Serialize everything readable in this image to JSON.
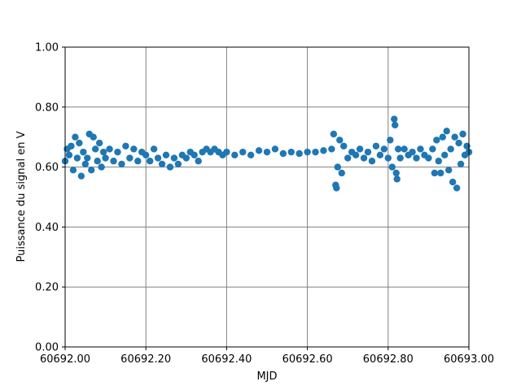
{
  "chart_data": {
    "type": "scatter",
    "xlabel": "MJD",
    "ylabel": "Puissance du signal en V",
    "color": "#1f77b4",
    "grid": true,
    "xlim": [
      60692,
      60693
    ],
    "ylim": [
      0,
      1
    ],
    "xticks": [
      {
        "value": 60692,
        "label": "60692.00"
      },
      {
        "value": 60692.2,
        "label": "60692.20"
      },
      {
        "value": 60692.4,
        "label": "60692.40"
      },
      {
        "value": 60692.6,
        "label": "60692.60"
      },
      {
        "value": 60692.8,
        "label": "60692.80"
      },
      {
        "value": 60693,
        "label": "60693.00"
      }
    ],
    "yticks": [
      {
        "value": 0,
        "label": "0.00"
      },
      {
        "value": 0.2,
        "label": "0.20"
      },
      {
        "value": 0.4,
        "label": "0.40"
      },
      {
        "value": 0.6,
        "label": "0.60"
      },
      {
        "value": 0.8,
        "label": "0.80"
      },
      {
        "value": 1,
        "label": "1.00"
      }
    ],
    "x": [
      60692.0,
      60692.005,
      60692.01,
      60692.015,
      60692.02,
      60692.025,
      60692.03,
      60692.035,
      60692.04,
      60692.045,
      60692.05,
      60692.055,
      60692.06,
      60692.065,
      60692.07,
      60692.075,
      60692.08,
      60692.085,
      60692.09,
      60692.095,
      60692.1,
      60692.11,
      60692.12,
      60692.13,
      60692.14,
      60692.15,
      60692.16,
      60692.17,
      60692.18,
      60692.19,
      60692.2,
      60692.21,
      60692.22,
      60692.23,
      60692.24,
      60692.25,
      60692.26,
      60692.27,
      60692.28,
      60692.29,
      60692.3,
      60692.31,
      60692.32,
      60692.33,
      60692.34,
      60692.35,
      60692.36,
      60692.37,
      60692.38,
      60692.39,
      60692.4,
      60692.42,
      60692.44,
      60692.46,
      60692.48,
      60692.5,
      60692.52,
      60692.54,
      60692.56,
      60692.58,
      60692.6,
      60692.62,
      60692.64,
      60692.66,
      60692.665,
      60692.67,
      60692.672,
      60692.675,
      60692.68,
      60692.685,
      60692.69,
      60692.7,
      60692.71,
      60692.72,
      60692.73,
      60692.74,
      60692.75,
      60692.76,
      60692.77,
      60692.78,
      60692.79,
      60692.8,
      60692.805,
      60692.81,
      60692.815,
      60692.817,
      60692.82,
      60692.822,
      60692.825,
      60692.83,
      60692.84,
      60692.85,
      60692.86,
      60692.87,
      60692.88,
      60692.89,
      60692.9,
      60692.91,
      60692.915,
      60692.92,
      60692.925,
      60692.93,
      60692.935,
      60692.94,
      60692.945,
      60692.95,
      60692.955,
      60692.96,
      60692.965,
      60692.97,
      60692.975,
      60692.98,
      60692.985,
      60692.99,
      60692.995,
      60693.0
    ],
    "values": [
      0.62,
      0.66,
      0.64,
      0.67,
      0.59,
      0.7,
      0.63,
      0.68,
      0.57,
      0.65,
      0.61,
      0.63,
      0.71,
      0.59,
      0.7,
      0.66,
      0.62,
      0.68,
      0.6,
      0.65,
      0.63,
      0.66,
      0.62,
      0.65,
      0.61,
      0.67,
      0.63,
      0.66,
      0.62,
      0.65,
      0.64,
      0.62,
      0.66,
      0.63,
      0.61,
      0.64,
      0.6,
      0.63,
      0.61,
      0.64,
      0.63,
      0.65,
      0.64,
      0.62,
      0.65,
      0.66,
      0.65,
      0.66,
      0.65,
      0.64,
      0.65,
      0.64,
      0.65,
      0.64,
      0.655,
      0.65,
      0.66,
      0.645,
      0.65,
      0.645,
      0.65,
      0.65,
      0.655,
      0.66,
      0.71,
      0.54,
      0.53,
      0.6,
      0.69,
      0.58,
      0.67,
      0.63,
      0.65,
      0.64,
      0.66,
      0.63,
      0.65,
      0.62,
      0.67,
      0.64,
      0.66,
      0.63,
      0.69,
      0.6,
      0.76,
      0.74,
      0.58,
      0.56,
      0.66,
      0.63,
      0.66,
      0.64,
      0.65,
      0.63,
      0.66,
      0.64,
      0.63,
      0.66,
      0.58,
      0.69,
      0.62,
      0.58,
      0.7,
      0.64,
      0.72,
      0.59,
      0.66,
      0.55,
      0.7,
      0.53,
      0.68,
      0.61,
      0.71,
      0.64,
      0.67,
      0.65
    ]
  }
}
